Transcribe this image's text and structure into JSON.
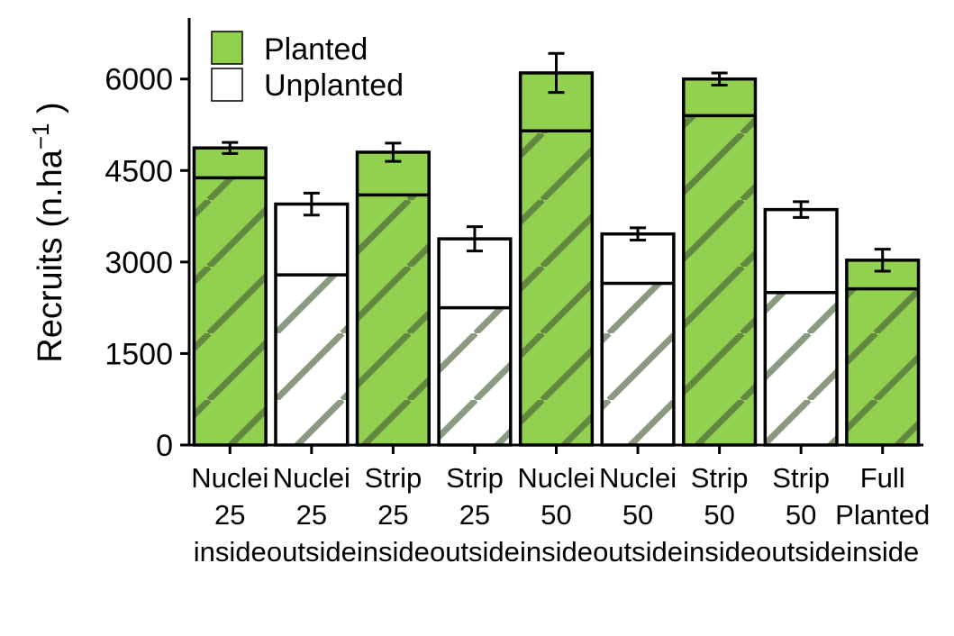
{
  "chart_data": {
    "type": "bar",
    "stacked_overlay": true,
    "ylabel": "Recruits (n.ha",
    "ylabel_superscript": "−1",
    "ylabel_suffix": " )",
    "ylim": [
      0,
      7000
    ],
    "yticks": [
      "0",
      "1500",
      "3000",
      "4500",
      "6000"
    ],
    "ytick_values": [
      0,
      1500,
      3000,
      4500,
      6000
    ],
    "grid": false,
    "legend_position": "top-left",
    "legend": [
      {
        "name": "Planted",
        "color": "#92d050"
      },
      {
        "name": "Unplanted",
        "color": "#ffffff"
      }
    ],
    "hatch_note": "diagonal hatching marks lower (divided) segment",
    "categories": [
      [
        "Nuclei",
        "25",
        "inside"
      ],
      [
        "Nuclei",
        "25",
        "outside"
      ],
      [
        "Strip",
        "25",
        "inside"
      ],
      [
        "Strip",
        "25",
        "outside"
      ],
      [
        "Nuclei",
        "50",
        "inside"
      ],
      [
        "Nuclei",
        "50",
        "outside"
      ],
      [
        "Strip",
        "50",
        "inside"
      ],
      [
        "Strip",
        "50",
        "outside"
      ],
      [
        "Full",
        "Planted",
        "inside"
      ]
    ],
    "series": [
      {
        "name": "Planted",
        "type_index": [
          0,
          1,
          0,
          1,
          0,
          1,
          0,
          1,
          0
        ]
      }
    ],
    "totals": [
      4870,
      3950,
      4800,
      3380,
      6100,
      3460,
      6000,
      3860,
      3030
    ],
    "lower_segment": [
      4380,
      2790,
      4100,
      2250,
      5150,
      2650,
      5400,
      2500,
      2560
    ],
    "error": [
      90,
      180,
      150,
      200,
      320,
      100,
      100,
      130,
      180
    ]
  }
}
